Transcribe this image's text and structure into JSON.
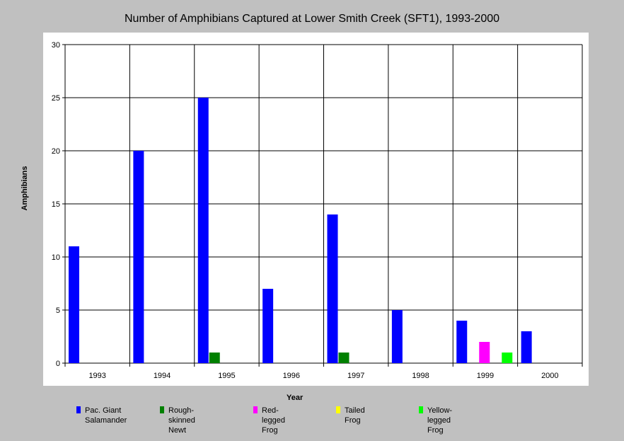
{
  "chart_data": {
    "type": "bar",
    "title": "Number of Amphibians Captured at Lower Smith Creek (SFT1), 1993-2000",
    "xlabel": "Year",
    "ylabel": "Amphibians",
    "ylim": [
      0,
      30
    ],
    "yticks": [
      0,
      5,
      10,
      15,
      20,
      25,
      30
    ],
    "grid": true,
    "legend_position": "bottom",
    "categories": [
      "1993",
      "1994",
      "1995",
      "1996",
      "1997",
      "1998",
      "1999",
      "2000"
    ],
    "series": [
      {
        "name": "Pac. Giant\nSalamander",
        "color": "#0000ff",
        "values": [
          11,
          20,
          25,
          7,
          14,
          5,
          4,
          3
        ]
      },
      {
        "name": "Rough-skinned Newt",
        "color": "#008000",
        "values": [
          0,
          0,
          1,
          0,
          1,
          0,
          0,
          0
        ]
      },
      {
        "name": "Red-legged Frog",
        "color": "#ff00ff",
        "values": [
          0,
          0,
          0,
          0,
          0,
          0,
          2,
          0
        ]
      },
      {
        "name": "Tailed Frog",
        "color": "#ffff00",
        "values": [
          0,
          0,
          0,
          0,
          0,
          0,
          0,
          0
        ]
      },
      {
        "name": "Yellow-legged Frog",
        "color": "#00ff00",
        "values": [
          0,
          0,
          0,
          0,
          0,
          0,
          1,
          0
        ]
      }
    ]
  }
}
